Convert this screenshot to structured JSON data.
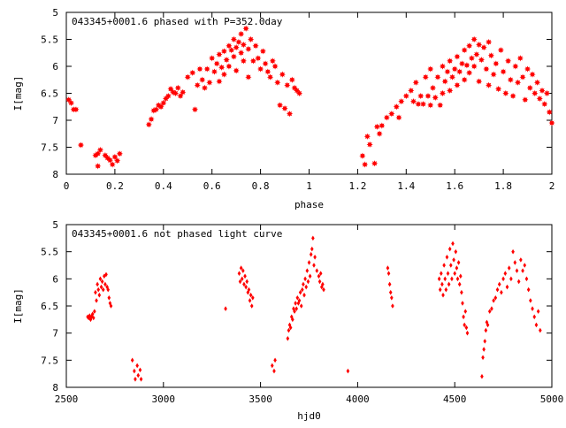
{
  "chart_data": [
    {
      "type": "scatter",
      "title": "043345+0001.6 phased with P=352.0day",
      "xlabel": "phase",
      "ylabel": "I[mag]",
      "xlim": [
        0,
        2
      ],
      "ylim": [
        8,
        5
      ],
      "y_inverted": true,
      "xticks": [
        0,
        0.2,
        0.4,
        0.6,
        0.8,
        1,
        1.2,
        1.4,
        1.6,
        1.8,
        2
      ],
      "xtick_labels": [
        "0",
        "0.2",
        "0.4",
        "0.6",
        "0.8",
        "1",
        "1.2",
        "1.4",
        "1.6",
        "1.8",
        "2"
      ],
      "yticks": [
        5,
        5.5,
        6,
        6.5,
        7,
        7.5,
        8
      ],
      "ytick_labels": [
        "5",
        "5.5",
        "6",
        "6.5",
        "7",
        "7.5",
        "8"
      ],
      "marker": "star",
      "color": "#ff0000",
      "points": [
        [
          0.01,
          6.62
        ],
        [
          0.02,
          6.68
        ],
        [
          0.03,
          6.8
        ],
        [
          0.04,
          6.8
        ],
        [
          0.06,
          7.46
        ],
        [
          0.12,
          7.65
        ],
        [
          0.13,
          7.62
        ],
        [
          0.13,
          7.85
        ],
        [
          0.14,
          7.55
        ],
        [
          0.16,
          7.65
        ],
        [
          0.17,
          7.7
        ],
        [
          0.18,
          7.74
        ],
        [
          0.19,
          7.82
        ],
        [
          0.2,
          7.68
        ],
        [
          0.21,
          7.75
        ],
        [
          0.22,
          7.62
        ],
        [
          0.34,
          7.08
        ],
        [
          0.35,
          6.98
        ],
        [
          0.36,
          6.82
        ],
        [
          0.37,
          6.8
        ],
        [
          0.38,
          6.72
        ],
        [
          0.39,
          6.75
        ],
        [
          0.4,
          6.68
        ],
        [
          0.41,
          6.6
        ],
        [
          0.42,
          6.55
        ],
        [
          0.43,
          6.42
        ],
        [
          0.44,
          6.48
        ],
        [
          0.45,
          6.5
        ],
        [
          0.46,
          6.4
        ],
        [
          0.47,
          6.55
        ],
        [
          0.48,
          6.48
        ],
        [
          0.5,
          6.2
        ],
        [
          0.52,
          6.12
        ],
        [
          0.53,
          6.8
        ],
        [
          0.54,
          6.35
        ],
        [
          0.55,
          6.05
        ],
        [
          0.56,
          6.25
        ],
        [
          0.57,
          6.4
        ],
        [
          0.58,
          6.05
        ],
        [
          0.59,
          6.3
        ],
        [
          0.6,
          5.85
        ],
        [
          0.61,
          6.1
        ],
        [
          0.62,
          5.95
        ],
        [
          0.63,
          6.28
        ],
        [
          0.63,
          5.78
        ],
        [
          0.64,
          6.02
        ],
        [
          0.65,
          5.72
        ],
        [
          0.65,
          6.15
        ],
        [
          0.66,
          5.88
        ],
        [
          0.67,
          5.62
        ],
        [
          0.67,
          6.0
        ],
        [
          0.68,
          5.7
        ],
        [
          0.69,
          5.5
        ],
        [
          0.69,
          5.82
        ],
        [
          0.7,
          5.65
        ],
        [
          0.7,
          6.08
        ],
        [
          0.71,
          5.55
        ],
        [
          0.72,
          5.75
        ],
        [
          0.72,
          5.4
        ],
        [
          0.73,
          5.6
        ],
        [
          0.73,
          5.9
        ],
        [
          0.74,
          5.3
        ],
        [
          0.75,
          5.68
        ],
        [
          0.75,
          6.2
        ],
        [
          0.76,
          5.5
        ],
        [
          0.77,
          5.9
        ],
        [
          0.78,
          5.62
        ],
        [
          0.79,
          5.85
        ],
        [
          0.8,
          6.05
        ],
        [
          0.81,
          5.72
        ],
        [
          0.82,
          5.95
        ],
        [
          0.83,
          6.1
        ],
        [
          0.84,
          6.2
        ],
        [
          0.85,
          5.9
        ],
        [
          0.86,
          6.0
        ],
        [
          0.87,
          6.3
        ],
        [
          0.88,
          6.72
        ],
        [
          0.89,
          6.15
        ],
        [
          0.9,
          6.78
        ],
        [
          0.91,
          6.35
        ],
        [
          0.92,
          6.88
        ],
        [
          0.93,
          6.25
        ],
        [
          0.94,
          6.4
        ],
        [
          0.95,
          6.45
        ],
        [
          0.96,
          6.5
        ],
        [
          1.22,
          7.66
        ],
        [
          1.23,
          7.82
        ],
        [
          1.24,
          7.3
        ],
        [
          1.25,
          7.45
        ],
        [
          1.27,
          7.8
        ],
        [
          1.28,
          7.12
        ],
        [
          1.29,
          7.25
        ],
        [
          1.3,
          7.1
        ],
        [
          1.32,
          6.95
        ],
        [
          1.34,
          6.88
        ],
        [
          1.36,
          6.75
        ],
        [
          1.37,
          6.95
        ],
        [
          1.38,
          6.65
        ],
        [
          1.4,
          6.55
        ],
        [
          1.42,
          6.45
        ],
        [
          1.43,
          6.65
        ],
        [
          1.44,
          6.3
        ],
        [
          1.45,
          6.7
        ],
        [
          1.46,
          6.55
        ],
        [
          1.47,
          6.7
        ],
        [
          1.48,
          6.2
        ],
        [
          1.49,
          6.55
        ],
        [
          1.5,
          6.05
        ],
        [
          1.5,
          6.72
        ],
        [
          1.51,
          6.4
        ],
        [
          1.52,
          6.58
        ],
        [
          1.53,
          6.2
        ],
        [
          1.54,
          6.72
        ],
        [
          1.55,
          6.0
        ],
        [
          1.55,
          6.5
        ],
        [
          1.56,
          6.28
        ],
        [
          1.57,
          6.1
        ],
        [
          1.58,
          5.9
        ],
        [
          1.58,
          6.45
        ],
        [
          1.59,
          6.2
        ],
        [
          1.6,
          6.05
        ],
        [
          1.61,
          5.82
        ],
        [
          1.61,
          6.35
        ],
        [
          1.62,
          6.1
        ],
        [
          1.63,
          5.95
        ],
        [
          1.64,
          5.7
        ],
        [
          1.64,
          6.25
        ],
        [
          1.65,
          5.98
        ],
        [
          1.66,
          5.62
        ],
        [
          1.66,
          6.12
        ],
        [
          1.67,
          5.85
        ],
        [
          1.68,
          5.5
        ],
        [
          1.68,
          6.0
        ],
        [
          1.69,
          5.78
        ],
        [
          1.7,
          5.6
        ],
        [
          1.7,
          6.28
        ],
        [
          1.71,
          5.88
        ],
        [
          1.72,
          5.65
        ],
        [
          1.73,
          6.05
        ],
        [
          1.74,
          5.55
        ],
        [
          1.74,
          6.35
        ],
        [
          1.75,
          5.8
        ],
        [
          1.76,
          6.15
        ],
        [
          1.77,
          5.95
        ],
        [
          1.78,
          6.42
        ],
        [
          1.79,
          5.7
        ],
        [
          1.8,
          6.1
        ],
        [
          1.81,
          6.5
        ],
        [
          1.82,
          5.9
        ],
        [
          1.83,
          6.25
        ],
        [
          1.84,
          6.55
        ],
        [
          1.85,
          6.0
        ],
        [
          1.86,
          6.3
        ],
        [
          1.87,
          5.85
        ],
        [
          1.88,
          6.2
        ],
        [
          1.89,
          6.62
        ],
        [
          1.9,
          6.05
        ],
        [
          1.91,
          6.4
        ],
        [
          1.92,
          6.15
        ],
        [
          1.93,
          6.5
        ],
        [
          1.94,
          6.3
        ],
        [
          1.95,
          6.6
        ],
        [
          1.96,
          6.45
        ],
        [
          1.97,
          6.7
        ],
        [
          1.98,
          6.5
        ],
        [
          1.99,
          6.85
        ],
        [
          2.0,
          7.05
        ]
      ]
    },
    {
      "type": "scatter",
      "title": "043345+0001.6 not phased light curve",
      "xlabel": "hjd0",
      "ylabel": "I[mag]",
      "xlim": [
        2500,
        5000
      ],
      "ylim": [
        8,
        5
      ],
      "y_inverted": true,
      "xticks": [
        2500,
        3000,
        3500,
        4000,
        4500,
        5000
      ],
      "xtick_labels": [
        "2500",
        "3000",
        "3500",
        "4000",
        "4500",
        "5000"
      ],
      "yticks": [
        5,
        5.5,
        6,
        6.5,
        7,
        7.5,
        8
      ],
      "ytick_labels": [
        "5",
        "5.5",
        "6",
        "6.5",
        "7",
        "7.5",
        "8"
      ],
      "marker": "diamond",
      "color": "#ff0000",
      "points": [
        [
          2610,
          6.7
        ],
        [
          2615,
          6.72
        ],
        [
          2620,
          6.68
        ],
        [
          2625,
          6.75
        ],
        [
          2630,
          6.7
        ],
        [
          2635,
          6.65
        ],
        [
          2640,
          6.72
        ],
        [
          2645,
          6.6
        ],
        [
          2650,
          6.25
        ],
        [
          2655,
          6.4
        ],
        [
          2660,
          6.1
        ],
        [
          2665,
          6.2
        ],
        [
          2670,
          6.3
        ],
        [
          2675,
          6.0
        ],
        [
          2680,
          6.15
        ],
        [
          2685,
          6.05
        ],
        [
          2690,
          6.2
        ],
        [
          2695,
          5.95
        ],
        [
          2700,
          6.1
        ],
        [
          2705,
          5.92
        ],
        [
          2710,
          6.15
        ],
        [
          2715,
          6.2
        ],
        [
          2720,
          6.35
        ],
        [
          2725,
          6.45
        ],
        [
          2730,
          6.5
        ],
        [
          2840,
          7.5
        ],
        [
          2850,
          7.7
        ],
        [
          2855,
          7.85
        ],
        [
          2865,
          7.6
        ],
        [
          2870,
          7.78
        ],
        [
          2880,
          7.68
        ],
        [
          2885,
          7.85
        ],
        [
          3320,
          6.55
        ],
        [
          3390,
          5.9
        ],
        [
          3395,
          6.05
        ],
        [
          3400,
          5.8
        ],
        [
          3405,
          6.0
        ],
        [
          3410,
          5.85
        ],
        [
          3415,
          6.1
        ],
        [
          3420,
          5.95
        ],
        [
          3425,
          6.15
        ],
        [
          3430,
          6.05
        ],
        [
          3435,
          6.25
        ],
        [
          3440,
          6.2
        ],
        [
          3445,
          6.4
        ],
        [
          3450,
          6.3
        ],
        [
          3455,
          6.5
        ],
        [
          3460,
          6.35
        ],
        [
          3560,
          7.6
        ],
        [
          3570,
          7.7
        ],
        [
          3575,
          7.5
        ],
        [
          3640,
          7.1
        ],
        [
          3645,
          6.95
        ],
        [
          3650,
          6.85
        ],
        [
          3655,
          6.9
        ],
        [
          3660,
          6.7
        ],
        [
          3665,
          6.75
        ],
        [
          3670,
          6.55
        ],
        [
          3675,
          6.6
        ],
        [
          3680,
          6.45
        ],
        [
          3685,
          6.55
        ],
        [
          3690,
          6.35
        ],
        [
          3695,
          6.45
        ],
        [
          3700,
          6.4
        ],
        [
          3705,
          6.25
        ],
        [
          3710,
          6.5
        ],
        [
          3715,
          6.2
        ],
        [
          3720,
          6.1
        ],
        [
          3725,
          6.3
        ],
        [
          3730,
          6.0
        ],
        [
          3735,
          6.15
        ],
        [
          3740,
          5.85
        ],
        [
          3745,
          6.05
        ],
        [
          3750,
          5.7
        ],
        [
          3755,
          5.95
        ],
        [
          3760,
          5.55
        ],
        [
          3765,
          5.45
        ],
        [
          3770,
          5.25
        ],
        [
          3775,
          5.75
        ],
        [
          3780,
          5.6
        ],
        [
          3790,
          5.85
        ],
        [
          3800,
          5.95
        ],
        [
          3805,
          6.05
        ],
        [
          3810,
          5.9
        ],
        [
          3815,
          6.15
        ],
        [
          3820,
          6.1
        ],
        [
          3825,
          6.2
        ],
        [
          3950,
          7.7
        ],
        [
          4155,
          5.8
        ],
        [
          4160,
          5.9
        ],
        [
          4165,
          6.1
        ],
        [
          4170,
          6.25
        ],
        [
          4175,
          6.35
        ],
        [
          4180,
          6.5
        ],
        [
          4420,
          6.0
        ],
        [
          4425,
          6.2
        ],
        [
          4430,
          5.9
        ],
        [
          4435,
          6.1
        ],
        [
          4440,
          6.3
        ],
        [
          4445,
          5.75
        ],
        [
          4450,
          6.0
        ],
        [
          4455,
          6.2
        ],
        [
          4460,
          5.6
        ],
        [
          4465,
          5.9
        ],
        [
          4470,
          6.1
        ],
        [
          4475,
          5.45
        ],
        [
          4480,
          5.75
        ],
        [
          4485,
          6.0
        ],
        [
          4490,
          5.35
        ],
        [
          4495,
          5.65
        ],
        [
          4500,
          5.9
        ],
        [
          4505,
          5.5
        ],
        [
          4510,
          5.8
        ],
        [
          4515,
          6.0
        ],
        [
          4520,
          5.7
        ],
        [
          4525,
          6.1
        ],
        [
          4530,
          5.95
        ],
        [
          4535,
          6.25
        ],
        [
          4540,
          6.45
        ],
        [
          4545,
          6.7
        ],
        [
          4550,
          6.85
        ],
        [
          4555,
          6.6
        ],
        [
          4560,
          6.9
        ],
        [
          4565,
          7.0
        ],
        [
          4640,
          7.8
        ],
        [
          4645,
          7.45
        ],
        [
          4650,
          7.3
        ],
        [
          4655,
          7.15
        ],
        [
          4660,
          6.95
        ],
        [
          4665,
          6.8
        ],
        [
          4670,
          6.85
        ],
        [
          4680,
          6.6
        ],
        [
          4690,
          6.55
        ],
        [
          4700,
          6.4
        ],
        [
          4710,
          6.35
        ],
        [
          4720,
          6.2
        ],
        [
          4730,
          6.1
        ],
        [
          4740,
          6.25
        ],
        [
          4750,
          6.0
        ],
        [
          4760,
          5.9
        ],
        [
          4770,
          6.15
        ],
        [
          4780,
          5.8
        ],
        [
          4790,
          6.0
        ],
        [
          4800,
          5.5
        ],
        [
          4810,
          5.7
        ],
        [
          4820,
          5.85
        ],
        [
          4830,
          6.05
        ],
        [
          4840,
          5.65
        ],
        [
          4850,
          5.85
        ],
        [
          4860,
          5.75
        ],
        [
          4870,
          6.0
        ],
        [
          4880,
          6.2
        ],
        [
          4890,
          6.4
        ],
        [
          4900,
          6.55
        ],
        [
          4910,
          6.7
        ],
        [
          4920,
          6.85
        ],
        [
          4930,
          6.6
        ],
        [
          4940,
          6.95
        ]
      ]
    }
  ]
}
